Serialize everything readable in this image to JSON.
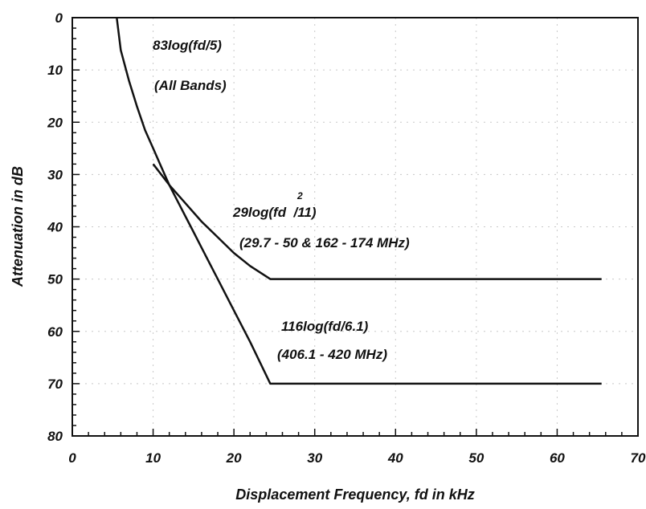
{
  "chart_data": {
    "type": "line",
    "xlabel": "Displacement Frequency, fd in kHz",
    "ylabel": "Attenuation in dB",
    "xlim": [
      0,
      70
    ],
    "ylim": [
      0,
      80
    ],
    "y_inverted": true,
    "xticks": [
      "0",
      "10",
      "20",
      "30",
      "40",
      "50",
      "60",
      "70"
    ],
    "yticks": [
      "0",
      "10",
      "20",
      "30",
      "40",
      "50",
      "60",
      "70",
      "80"
    ],
    "grid": true,
    "series": [
      {
        "key": "s83",
        "x": [
          5.5,
          6,
          7,
          8,
          9,
          10,
          11,
          12,
          13,
          14,
          15,
          16,
          18,
          20,
          22,
          24.5,
          65.5
        ],
        "y": [
          0,
          6.2,
          12,
          17,
          21.5,
          25,
          28.5,
          32,
          35,
          38,
          41,
          44,
          50,
          56,
          62,
          70,
          70
        ]
      },
      {
        "key": "s29",
        "x": [
          10,
          12,
          14,
          16,
          18,
          20,
          22,
          24.5,
          65.5
        ],
        "y": [
          28,
          32,
          35.5,
          39,
          42,
          45,
          47.5,
          50,
          50
        ]
      }
    ],
    "annotations": [
      {
        "key": "a1",
        "lines": [
          "83log(fd/5)",
          "(All Bands)"
        ]
      },
      {
        "key": "a2",
        "lines": [
          "29log(fd  /11)",
          "(29.7 - 50 & 162 - 174 MHz)"
        ],
        "superscript": "2"
      },
      {
        "key": "a3",
        "lines": [
          "116log(fd/6.1)",
          "(406.1 - 420 MHz)"
        ]
      }
    ]
  }
}
